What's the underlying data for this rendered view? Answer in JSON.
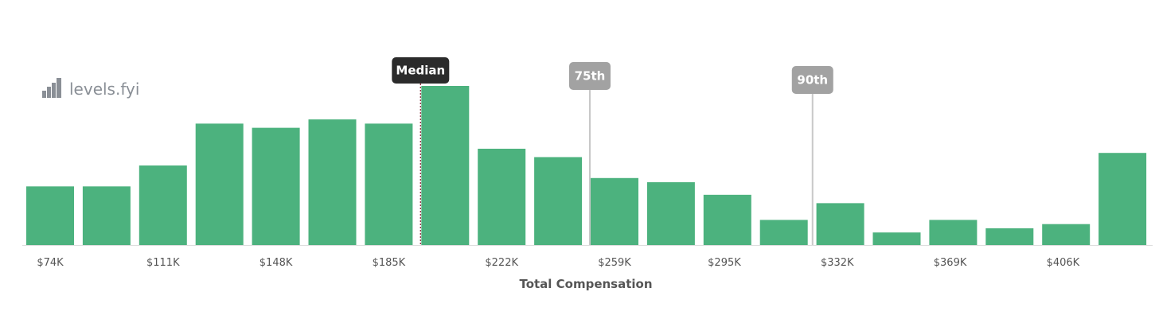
{
  "brand": {
    "name": "levels.fyi",
    "icon": "levels-logo-icon"
  },
  "colors": {
    "bar": "#4cb27e",
    "median_tag": "#2b2b2b",
    "percentile_tag": "#a2a2a2",
    "percentile_line": "#c8c8c8",
    "median_line": "#8b2a3a",
    "axis": "#dddddd"
  },
  "chart_data": {
    "type": "bar",
    "title": "",
    "xlabel": "Total Compensation",
    "ylabel": "",
    "bin_start": 74000,
    "bin_width": 18500,
    "values": [
      14,
      14,
      19,
      29,
      28,
      30,
      29,
      38,
      23,
      21,
      16,
      15,
      12,
      6,
      10,
      3,
      6,
      4,
      5,
      22
    ],
    "ylim": [
      0,
      38
    ],
    "tick_labels": [
      "$74K",
      "$111K",
      "$148K",
      "$185K",
      "$222K",
      "$259K",
      "$295K",
      "$332K",
      "$369K",
      "$406K"
    ],
    "tick_values": [
      74000,
      111000,
      148000,
      185000,
      222000,
      259000,
      295000,
      332000,
      369000,
      406000
    ],
    "markers": [
      {
        "label": "Median",
        "value": 203500,
        "kind": "median"
      },
      {
        "label": "75th",
        "value": 259000,
        "kind": "percentile"
      },
      {
        "label": "90th",
        "value": 332000,
        "kind": "percentile"
      }
    ],
    "grid": false,
    "legend": "none"
  }
}
